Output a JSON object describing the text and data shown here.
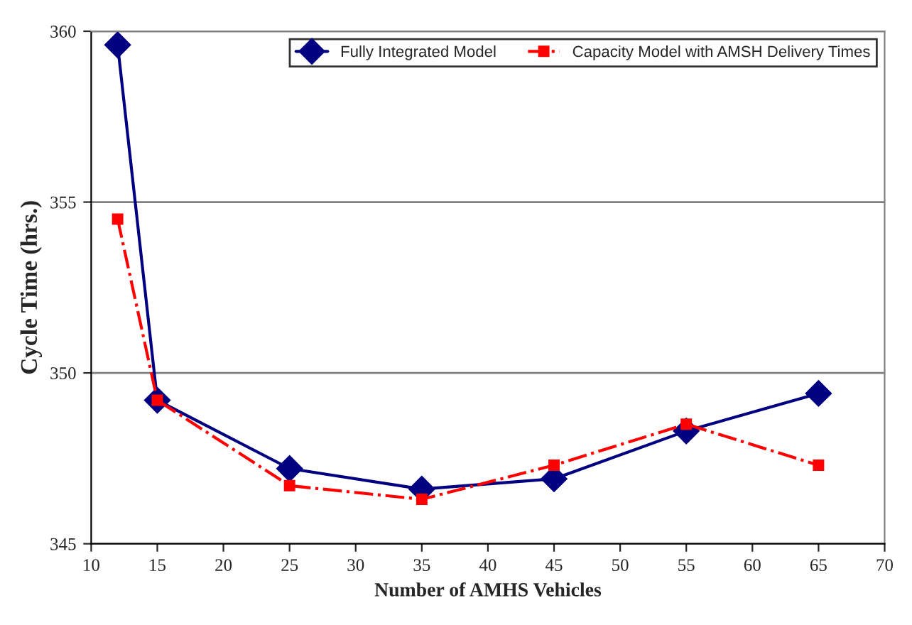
{
  "chart_data": {
    "type": "line",
    "xlabel": "Number of AMHS Vehicles",
    "ylabel": "Cycle Time (hrs.)",
    "xlim": [
      10,
      70
    ],
    "xticks": [
      10,
      15,
      20,
      25,
      30,
      35,
      40,
      45,
      50,
      55,
      60,
      65,
      70
    ],
    "ylim": [
      345,
      360
    ],
    "yticks": [
      345,
      350,
      355,
      360
    ],
    "grid": "y",
    "legend": "top right",
    "series": [
      {
        "name": "Fully Integrated Model",
        "color": "#000080",
        "marker": "diamond",
        "line_style": "solid",
        "x": [
          12,
          15,
          25,
          35,
          45,
          55,
          65
        ],
        "values": [
          359.6,
          349.2,
          347.2,
          346.6,
          346.9,
          348.3,
          349.4
        ]
      },
      {
        "name": "Capacity Model with AMSH Delivery Times",
        "color": "#ff0000",
        "marker": "square",
        "line_style": "dashdot",
        "x": [
          12,
          15,
          25,
          35,
          45,
          55,
          65
        ],
        "values": [
          354.5,
          349.2,
          346.7,
          346.3,
          347.3,
          348.5,
          347.3
        ]
      }
    ]
  }
}
